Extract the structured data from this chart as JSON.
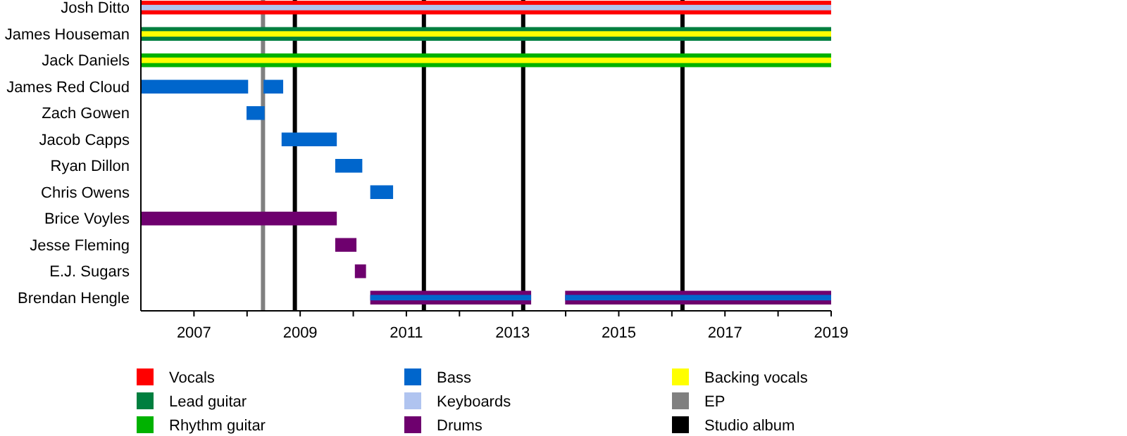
{
  "chart_data": {
    "type": "bar",
    "orientation": "horizontal",
    "categories": [
      "Josh Ditto",
      "James Houseman",
      "Jack Daniels",
      "James Red Cloud",
      "Zach Gowen",
      "Jacob Capps",
      "Ryan Dillon",
      "Chris Owens",
      "Brice Voyles",
      "Jesse Fleming",
      "E.J. Sugars",
      "Brendan Hengle"
    ],
    "series": [
      {
        "name": "Vocals",
        "color": "#ff0000",
        "base": [
          2006,
          null,
          null,
          null,
          null,
          null,
          null,
          null,
          null,
          null,
          null,
          null
        ],
        "values": [
          13,
          null,
          null,
          null,
          null,
          null,
          null,
          null,
          null,
          null,
          null,
          null
        ]
      },
      {
        "name": "Lead guitar",
        "color": "#007f3f",
        "base": [
          null,
          2006,
          null,
          null,
          null,
          null,
          null,
          null,
          null,
          null,
          null,
          null
        ],
        "values": [
          null,
          13,
          null,
          null,
          null,
          null,
          null,
          null,
          null,
          null,
          null,
          null
        ]
      },
      {
        "name": "Rhythm guitar",
        "color": "#00b200",
        "base": [
          null,
          null,
          2006,
          null,
          null,
          null,
          null,
          null,
          null,
          null,
          null,
          null
        ],
        "values": [
          null,
          null,
          13,
          null,
          null,
          null,
          null,
          null,
          null,
          null,
          null,
          null
        ]
      },
      {
        "name": "Bass",
        "color": "#0066cc",
        "base": [
          null,
          null,
          null,
          2006,
          2007.99,
          2008.65,
          2009.66,
          2010.32,
          null,
          null,
          null,
          null
        ],
        "values": [
          null,
          null,
          null,
          2.02,
          0.34,
          1.04,
          0.51,
          0.43,
          null,
          null,
          null,
          null
        ]
      },
      {
        "name": "Keyboards",
        "color": "#b0c4f0",
        "base": [
          2006,
          null,
          null,
          null,
          null,
          null,
          null,
          null,
          null,
          null,
          null,
          null
        ],
        "values": [
          13,
          null,
          null,
          null,
          null,
          null,
          null,
          null,
          null,
          null,
          null,
          null
        ]
      },
      {
        "name": "Drums",
        "color": "#6e006e",
        "base": [
          null,
          null,
          null,
          null,
          null,
          null,
          null,
          null,
          2006,
          2009.66,
          2010.03,
          2010.32
        ],
        "values": [
          null,
          null,
          null,
          null,
          null,
          null,
          null,
          null,
          3.69,
          0.4,
          0.21,
          3.03
        ]
      },
      {
        "name": "Backing vocals",
        "color": "#ffff00",
        "base": [
          null,
          2006,
          2006,
          null,
          null,
          null,
          null,
          null,
          null,
          null,
          null,
          null
        ],
        "values": [
          null,
          13,
          13,
          null,
          null,
          null,
          null,
          null,
          null,
          null,
          null,
          null
        ]
      },
      {
        "color": "#6e006e",
        "base": [
          null,
          null,
          null,
          null,
          null,
          null,
          null,
          null,
          null,
          null,
          null,
          2013.99
        ],
        "values": [
          null,
          null,
          null,
          null,
          null,
          null,
          null,
          null,
          null,
          null,
          null,
          5.01
        ]
      },
      {
        "color": "#0066cc",
        "base": [
          null,
          null,
          null,
          2008.31,
          null,
          null,
          null,
          null,
          null,
          null,
          null,
          2010.32
        ],
        "values": [
          null,
          null,
          null,
          0.37,
          null,
          null,
          null,
          null,
          null,
          null,
          null,
          3.03
        ]
      },
      {
        "color": "#0066cc",
        "base": [
          null,
          null,
          null,
          null,
          null,
          null,
          null,
          null,
          null,
          null,
          null,
          2013.99
        ],
        "values": [
          null,
          null,
          null,
          null,
          null,
          null,
          null,
          null,
          null,
          null,
          null,
          5.01
        ]
      }
    ],
    "xlim": [
      2006,
      2019
    ],
    "xticks": [
      2007,
      {
        "value": 2008,
        "label": null
      },
      2009,
      {
        "value": 2010,
        "label": null
      },
      2011,
      {
        "value": 2012,
        "label": null
      },
      2013,
      {
        "value": 2014,
        "label": null
      },
      2015,
      {
        "value": 2016,
        "label": null
      },
      2017,
      {
        "value": 2018,
        "label": null
      },
      2019
    ],
    "ref_lines": [
      {
        "axis": "x",
        "value": 2008.3,
        "label": "EP",
        "color": "#808080"
      },
      {
        "axis": "x",
        "value": 2008.9,
        "label": "Studio album",
        "color": "#000000"
      },
      {
        "axis": "x",
        "value": 2011.33,
        "color": "#000000"
      },
      {
        "axis": "x",
        "value": 2013.2,
        "color": "#000000"
      },
      {
        "axis": "x",
        "value": 2016.2,
        "color": "#000000"
      }
    ],
    "legend": "bottom"
  }
}
